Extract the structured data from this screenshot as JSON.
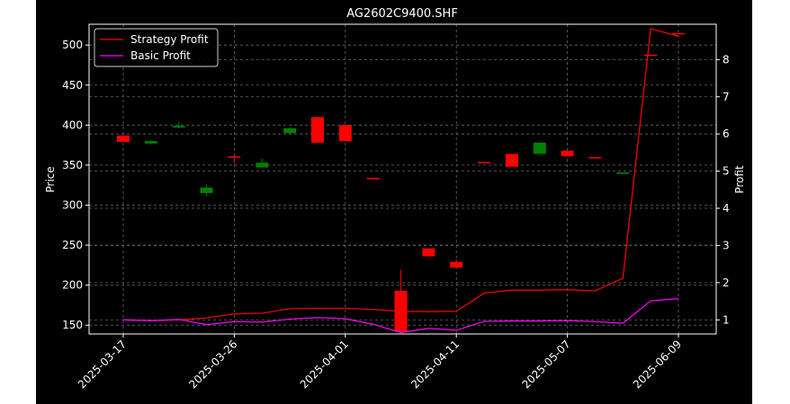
{
  "chart_data": {
    "type": "candlestick-with-lines",
    "title": "AG2602C9400.SHF",
    "ylabel": "Price",
    "y2label": "Profit",
    "ylim": [
      139,
      526
    ],
    "y2lim": [
      0.62,
      8.95
    ],
    "yticks": [
      150,
      200,
      250,
      300,
      350,
      400,
      450,
      500
    ],
    "y2ticks": [
      1,
      2,
      3,
      4,
      5,
      6,
      7,
      8
    ],
    "xtick_labels": [
      {
        "index": 0,
        "label": "2025-03-17"
      },
      {
        "index": 4,
        "label": "2025-03-26"
      },
      {
        "index": 8,
        "label": "2025-04-01"
      },
      {
        "index": 12,
        "label": "2025-04-11"
      },
      {
        "index": 16,
        "label": "2025-05-07"
      },
      {
        "index": 20,
        "label": "2025-06-09"
      }
    ],
    "grid": true,
    "legend": {
      "position": "top-left",
      "entries": [
        {
          "name": "Strategy Profit",
          "color": "#ff0000"
        },
        {
          "name": "Basic Profit",
          "color": "#ff00ff"
        }
      ]
    },
    "colors": {
      "up": "#008000",
      "down": "#ff0000",
      "background": "#000000"
    },
    "candles": [
      {
        "i": 0,
        "open": 387,
        "close": 379,
        "high": 387,
        "low": 379
      },
      {
        "i": 1,
        "open": 377,
        "close": 380,
        "high": 381,
        "low": 376
      },
      {
        "i": 2,
        "open": 397,
        "close": 399,
        "high": 404,
        "low": 396
      },
      {
        "i": 3,
        "open": 315,
        "close": 322,
        "high": 326,
        "low": 311
      },
      {
        "i": 4,
        "open": 361,
        "close": 360,
        "high": 362,
        "low": 352
      },
      {
        "i": 5,
        "open": 347,
        "close": 353,
        "high": 358,
        "low": 347
      },
      {
        "i": 6,
        "open": 390,
        "close": 396,
        "high": 397,
        "low": 389
      },
      {
        "i": 7,
        "open": 410,
        "close": 378,
        "high": 410,
        "low": 378
      },
      {
        "i": 8,
        "open": 400,
        "close": 380,
        "high": 400,
        "low": 380
      },
      {
        "i": 9,
        "open": 334,
        "close": 333,
        "high": 334,
        "low": 333
      },
      {
        "i": 10,
        "open": 193,
        "close": 142,
        "high": 219,
        "low": 141
      },
      {
        "i": 11,
        "open": 246,
        "close": 236,
        "high": 246,
        "low": 236
      },
      {
        "i": 12,
        "open": 229,
        "close": 222,
        "high": 232,
        "low": 222
      },
      {
        "i": 13,
        "open": 354,
        "close": 353,
        "high": 354,
        "low": 353
      },
      {
        "i": 14,
        "open": 364,
        "close": 348,
        "high": 364,
        "low": 348
      },
      {
        "i": 15,
        "open": 364,
        "close": 378,
        "high": 378,
        "low": 364
      },
      {
        "i": 16,
        "open": 368,
        "close": 361,
        "high": 368,
        "low": 361
      },
      {
        "i": 17,
        "open": 360,
        "close": 359,
        "high": 360,
        "low": 359
      },
      {
        "i": 18,
        "open": 339,
        "close": 341,
        "high": 341,
        "low": 339
      },
      {
        "i": 19,
        "open": 488,
        "close": 487,
        "high": 488,
        "low": 487
      },
      {
        "i": 20,
        "open": 515,
        "close": 514,
        "high": 515,
        "low": 514
      }
    ],
    "series": [
      {
        "name": "Strategy Profit",
        "axis": "right",
        "color": "#ff0000",
        "values": [
          1.0,
          0.98,
          1.0,
          1.05,
          1.16,
          1.18,
          1.3,
          1.31,
          1.31,
          1.28,
          1.23,
          1.22,
          1.23,
          1.72,
          1.8,
          1.8,
          1.81,
          1.78,
          2.12,
          8.83,
          8.63
        ]
      },
      {
        "name": "Basic Profit",
        "axis": "right",
        "color": "#ff00ff",
        "values": [
          1.0,
          0.98,
          1.01,
          0.87,
          0.95,
          0.94,
          1.02,
          1.06,
          1.03,
          0.88,
          0.66,
          0.77,
          0.72,
          0.96,
          0.97,
          0.97,
          0.98,
          0.95,
          0.91,
          1.51,
          1.57
        ]
      }
    ]
  }
}
